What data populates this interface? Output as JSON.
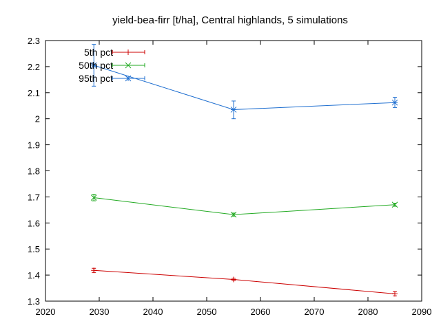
{
  "chart_data": {
    "type": "line",
    "title": "yield-bea-firr [t/ha], Central highlands, 5 simulations",
    "xlabel": "",
    "ylabel": "",
    "xlim": [
      2020,
      2090
    ],
    "ylim": [
      1.3,
      2.3
    ],
    "x_ticks": [
      2020,
      2030,
      2040,
      2050,
      2060,
      2070,
      2080,
      2090
    ],
    "y_ticks": [
      1.3,
      1.4,
      1.5,
      1.6,
      1.7,
      1.8,
      1.9,
      2,
      2.1,
      2.2,
      2.3
    ],
    "x_tick_labels": [
      "2020",
      "2030",
      "2040",
      "2050",
      "2060",
      "2070",
      "2080",
      "2090"
    ],
    "y_tick_labels": [
      "1.3",
      "1.4",
      "1.5",
      "1.6",
      "1.7",
      "1.8",
      "1.9",
      "2",
      "2.1",
      "2.2",
      "2.3"
    ],
    "legend_position": "top-left",
    "grid": false,
    "x": [
      2029,
      2055,
      2085
    ],
    "series": [
      {
        "name": "5th pct",
        "color": "#cc0000",
        "marker": "plus",
        "values": [
          1.418,
          1.383,
          1.328
        ],
        "err_low": [
          1.41,
          1.378,
          1.32
        ],
        "err_high": [
          1.426,
          1.388,
          1.336
        ]
      },
      {
        "name": "50th pct",
        "color": "#22aa22",
        "marker": "x",
        "values": [
          1.697,
          1.632,
          1.67
        ],
        "err_low": [
          1.685,
          1.626,
          1.664
        ],
        "err_high": [
          1.71,
          1.638,
          1.676
        ]
      },
      {
        "name": "95th pct",
        "color": "#1f6fd0",
        "marker": "star",
        "values": [
          2.205,
          2.035,
          2.062
        ],
        "err_low": [
          2.125,
          2.0,
          2.043
        ],
        "err_high": [
          2.285,
          2.068,
          2.082
        ]
      }
    ]
  }
}
